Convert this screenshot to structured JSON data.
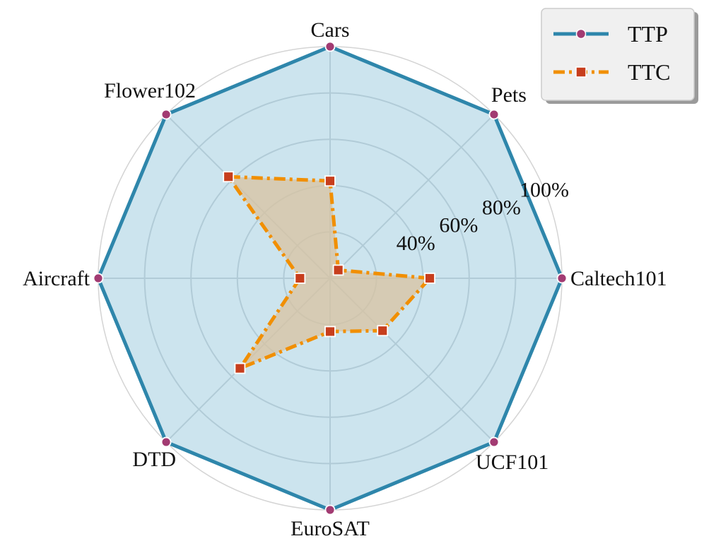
{
  "chart_data": {
    "type": "radar",
    "axes": [
      "Caltech101",
      "Pets",
      "Cars",
      "Flower102",
      "Aircraft",
      "DTD",
      "EuroSAT",
      "UCF101"
    ],
    "r_ticks": [
      40,
      60,
      80,
      100
    ],
    "r_tick_labels": [
      "40%",
      "60%",
      "80%",
      "100%"
    ],
    "r_range": [
      0,
      100
    ],
    "grid": true,
    "legend_position": "top-right",
    "series": [
      {
        "name": "TTP",
        "values": [
          100,
          100,
          100,
          100,
          100,
          100,
          100,
          100
        ],
        "color": "#2E86AB",
        "fill": "#ADD3E3",
        "marker": "circle",
        "marker_color": "#A23B72",
        "line_style": "solid"
      },
      {
        "name": "TTC",
        "values": [
          43,
          5,
          42,
          62,
          13,
          55,
          23,
          32
        ],
        "color": "#F18F01",
        "fill": "#D9C3A0",
        "marker": "square",
        "marker_color": "#C73E1D",
        "line_style": "dashdot"
      }
    ]
  }
}
